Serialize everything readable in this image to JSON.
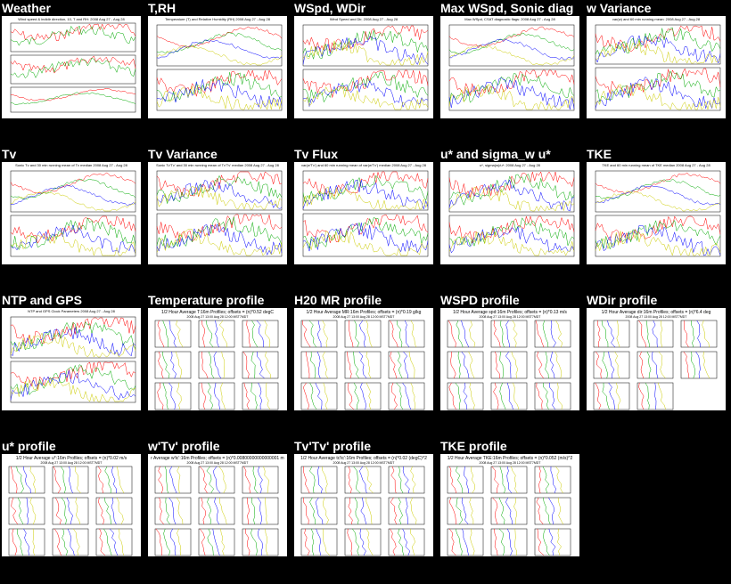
{
  "colors": {
    "background": "#000000",
    "title": "#ffffff",
    "thumb_bg": "#ffffff",
    "series": [
      "#ff0000",
      "#00aa00",
      "#0000ff",
      "#cccc00",
      "#88dd00",
      "#ff8800",
      "#000000"
    ]
  },
  "panels": [
    {
      "title": "Weather",
      "kind": "ts3",
      "caption": "Wind speed & indidir direction, 10, T and RH: 2008 Aug 27 - Aug 28"
    },
    {
      "title": "T,RH",
      "kind": "ts2",
      "caption": "Temperature (T) and Relative Humidity (RH) 2008 Aug 27 - Aug 28"
    },
    {
      "title": "WSpd, WDir",
      "kind": "ts2",
      "caption": "Wind Speed and Dir, 2008 Aug 27 - Aug 28"
    },
    {
      "title": "Max WSpd, Sonic diag",
      "kind": "ts2",
      "caption": "Max WSpd, CSAT diagnostic flags: 2008 Aug 27 - Aug 28"
    },
    {
      "title": "w Variance",
      "kind": "ts1",
      "caption": "var(w) and 60 min running mean: 2008 Aug 27 - Aug 28"
    },
    {
      "title": "Tv",
      "kind": "ts2",
      "caption": "Sonic Tv and 30 min running mean of Tv median 2008 Aug 27 - Aug 28"
    },
    {
      "title": "Tv Variance",
      "kind": "ts1",
      "caption": "Sonic Tv'Tv' and 30 min running mean of Tv'Tv' median 2008 Aug 27 - Aug 28"
    },
    {
      "title": "Tv Flux",
      "kind": "ts1",
      "caption": "var(w'Tv') and 60 min running mean of var(w'Tv') median 2008 Aug 27 - Aug 28"
    },
    {
      "title": "u* and sigma_w u*",
      "kind": "ts2",
      "caption": "u*, sigma(w)/u*: 2008 Aug 27 - Aug 28"
    },
    {
      "title": "TKE",
      "kind": "ts2",
      "caption": "TKE and 60 min running mean of TKE median 2008 Aug 27 - Aug 28"
    },
    {
      "title": "NTP and GPS",
      "kind": "ts2",
      "caption": "NTP and GPS Clock Parameters 2008 Aug 27 - Aug 28"
    },
    {
      "title": "Temperature profile",
      "kind": "profile",
      "caption": "1/2 Hour Average T:16m Profiles; offsets = (n)*0.52 degC",
      "sub": "2008 Aug 27 13:00 Aug 28 12:00 MST7MDT"
    },
    {
      "title": "H20 MR profile",
      "kind": "profile",
      "caption": "1/2 Hour Average MR:16m Profiles; offsets = (n)*0.19 g/kg",
      "sub": "2008 Aug 27 13:00 Aug 28 12:00 MST7MDT"
    },
    {
      "title": "WSPD profile",
      "kind": "profile",
      "caption": "1/2 Hour Average spd:16m Profiles; offsets = (n)*0.13 m/s",
      "sub": "2008 Aug 27 13:00 Aug 28 12:00 MST7MDT"
    },
    {
      "title": "WDir profile",
      "kind": "profile",
      "caption": "1/2 Hour Average dir:16m Profiles; offsets = (n)*6.4 deg",
      "sub": "2008 Aug 27 13:00 Aug 28 12:00 MST7MDT"
    },
    {
      "title": "u* profile",
      "kind": "profile",
      "caption": "1/2 Hour Average u*:16m Profiles; offsets = (n)*0.02 m/s",
      "sub": "2008 Aug 27 13:00 Aug 28 12:00 MST7MDT"
    },
    {
      "title": "w'Tv' profile",
      "kind": "profile",
      "caption": "r Average w'tc':16m Profiles; offsets = (n)*0.00800000000000001 m",
      "sub": "2008 Aug 27 13:00 Aug 28 12:00 MST7MDT"
    },
    {
      "title": "Tv'Tv' profile",
      "kind": "profile",
      "caption": "1/2 Hour Average tc'tc':16m Profiles; offsets = (n)*0.02 (degC)^2",
      "sub": "2008 Aug 27 13:00 Aug 28 12:00 MST7MDT"
    },
    {
      "title": "TKE profile",
      "kind": "profile",
      "caption": "1/2 Hour Average TKE:16m Profiles; offsets = (n)*0.052 (m/s)^2",
      "sub": "2008 Aug 27 13:00 Aug 28 12:00 MST7MDT"
    }
  ]
}
